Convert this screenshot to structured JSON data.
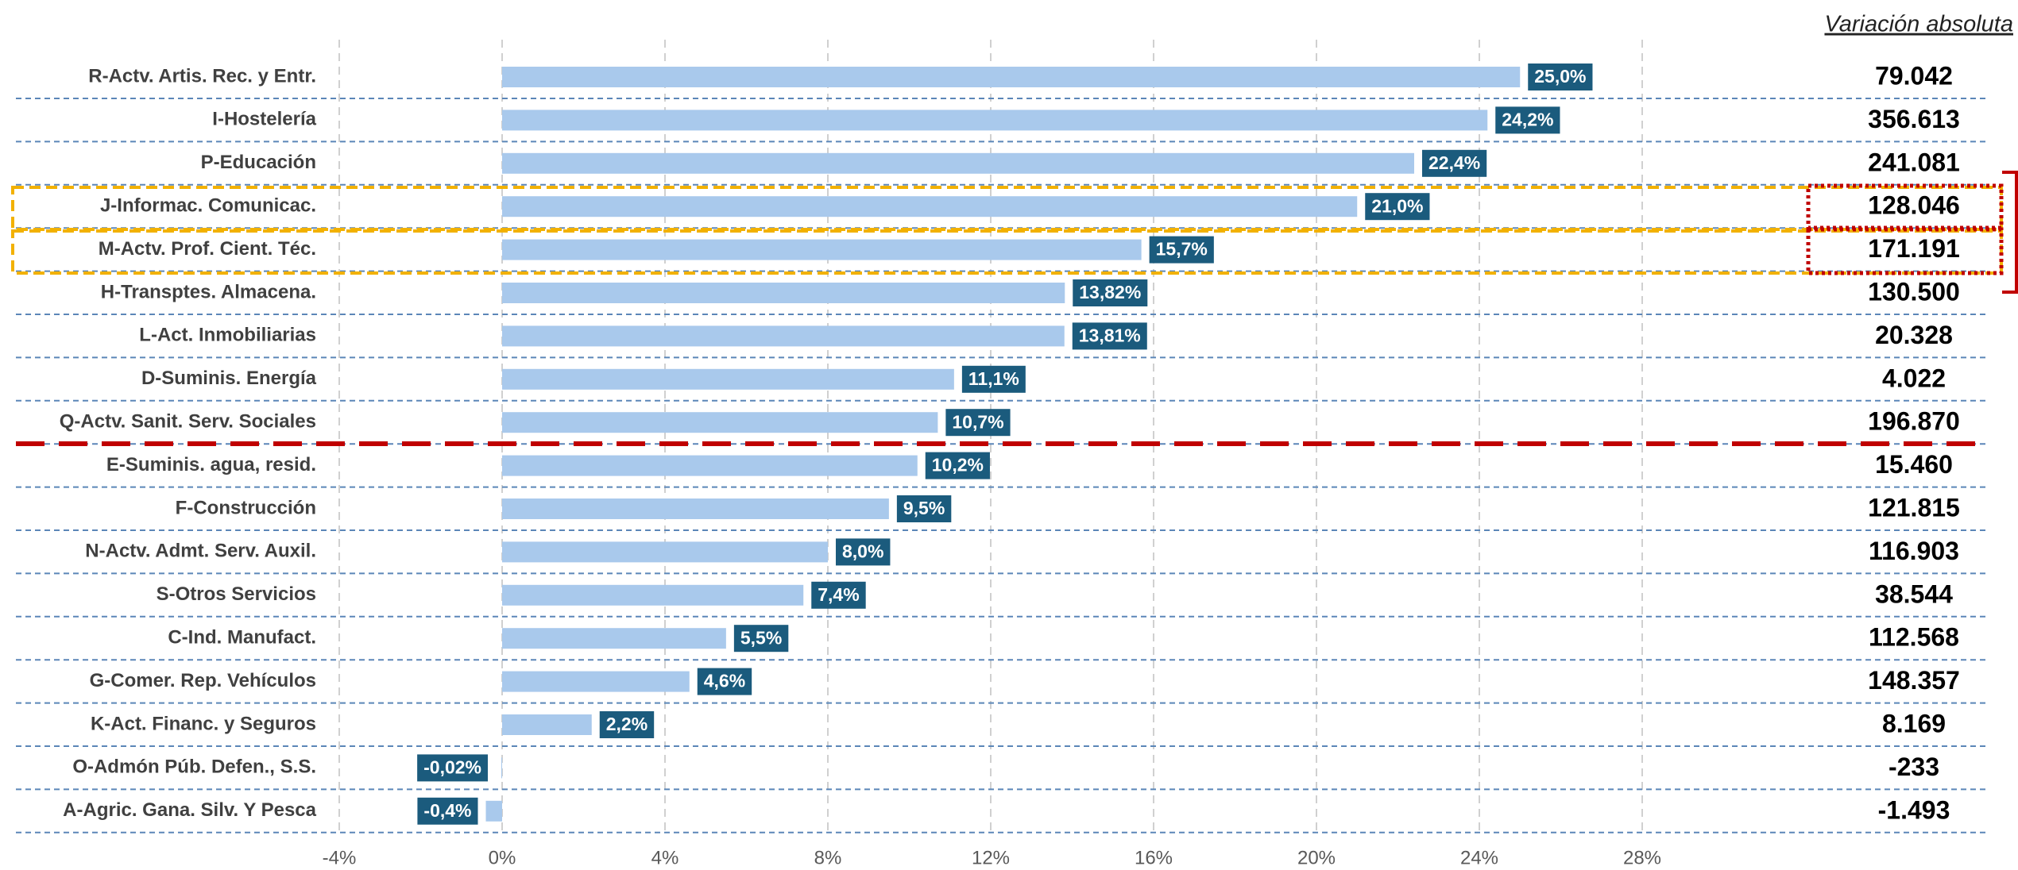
{
  "chart_data": {
    "type": "barh",
    "categories": [
      "R-Actv. Artis. Rec. y Entr.",
      "I-Hostelería",
      "P-Educación",
      "J-Informac. Comunicac.",
      "M-Actv. Prof. Cient. Téc.",
      "H-Transptes. Almacena.",
      "L-Act. Inmobiliarias",
      "D-Suminis. Energía",
      "Q-Actv. Sanit. Serv. Sociales",
      "E-Suminis. agua, resid.",
      "F-Construcción",
      "N-Actv. Admt. Serv. Auxil.",
      "S-Otros Servicios",
      "C-Ind. Manufact.",
      "G-Comer. Rep. Vehículos",
      "K-Act. Financ. y Seguros",
      "O-Admón Púb. Defen., S.S.",
      "A-Agric. Gana. Silv. Y Pesca"
    ],
    "values": [
      25.0,
      24.2,
      22.4,
      21.0,
      15.7,
      13.82,
      13.81,
      11.1,
      10.7,
      10.2,
      9.5,
      8.0,
      7.4,
      5.5,
      4.6,
      2.2,
      -0.02,
      -0.4
    ],
    "value_labels": [
      "25,0%",
      "24,2%",
      "22,4%",
      "21,0%",
      "15,7%",
      "13,82%",
      "13,81%",
      "11,1%",
      "10,7%",
      "10,2%",
      "9,5%",
      "8,0%",
      "7,4%",
      "5,5%",
      "4,6%",
      "2,2%",
      "-0,02%",
      "-0,4%"
    ],
    "color": "#a9c9ec",
    "label_color": "#1b5b7d",
    "xlim": [
      -4,
      28
    ],
    "xticks": [
      {
        "value": -4,
        "label": "-4%"
      },
      {
        "value": 0,
        "label": "0%"
      },
      {
        "value": 4,
        "label": "4%"
      },
      {
        "value": 8,
        "label": "8%"
      },
      {
        "value": 12,
        "label": "12%"
      },
      {
        "value": 16,
        "label": "16%"
      },
      {
        "value": 20,
        "label": "20%"
      },
      {
        "value": 24,
        "label": "24%"
      },
      {
        "value": 28,
        "label": "28%"
      }
    ],
    "grid": true,
    "absolute": {
      "title": "Variación absoluta",
      "values": [
        79042,
        356613,
        241081,
        128046,
        171191,
        130500,
        20328,
        4022,
        196870,
        15460,
        121815,
        116903,
        38544,
        112568,
        148357,
        8169,
        -233,
        -1493
      ],
      "value_labels": [
        "79.042",
        "356.613",
        "241.081",
        "128.046",
        "171.191",
        "130.500",
        "20.328",
        "4.022",
        "196.870",
        "15.460",
        "121.815",
        "116.903",
        "38.544",
        "112.568",
        "148.357",
        "8.169",
        "-233",
        "-1.493"
      ]
    }
  }
}
